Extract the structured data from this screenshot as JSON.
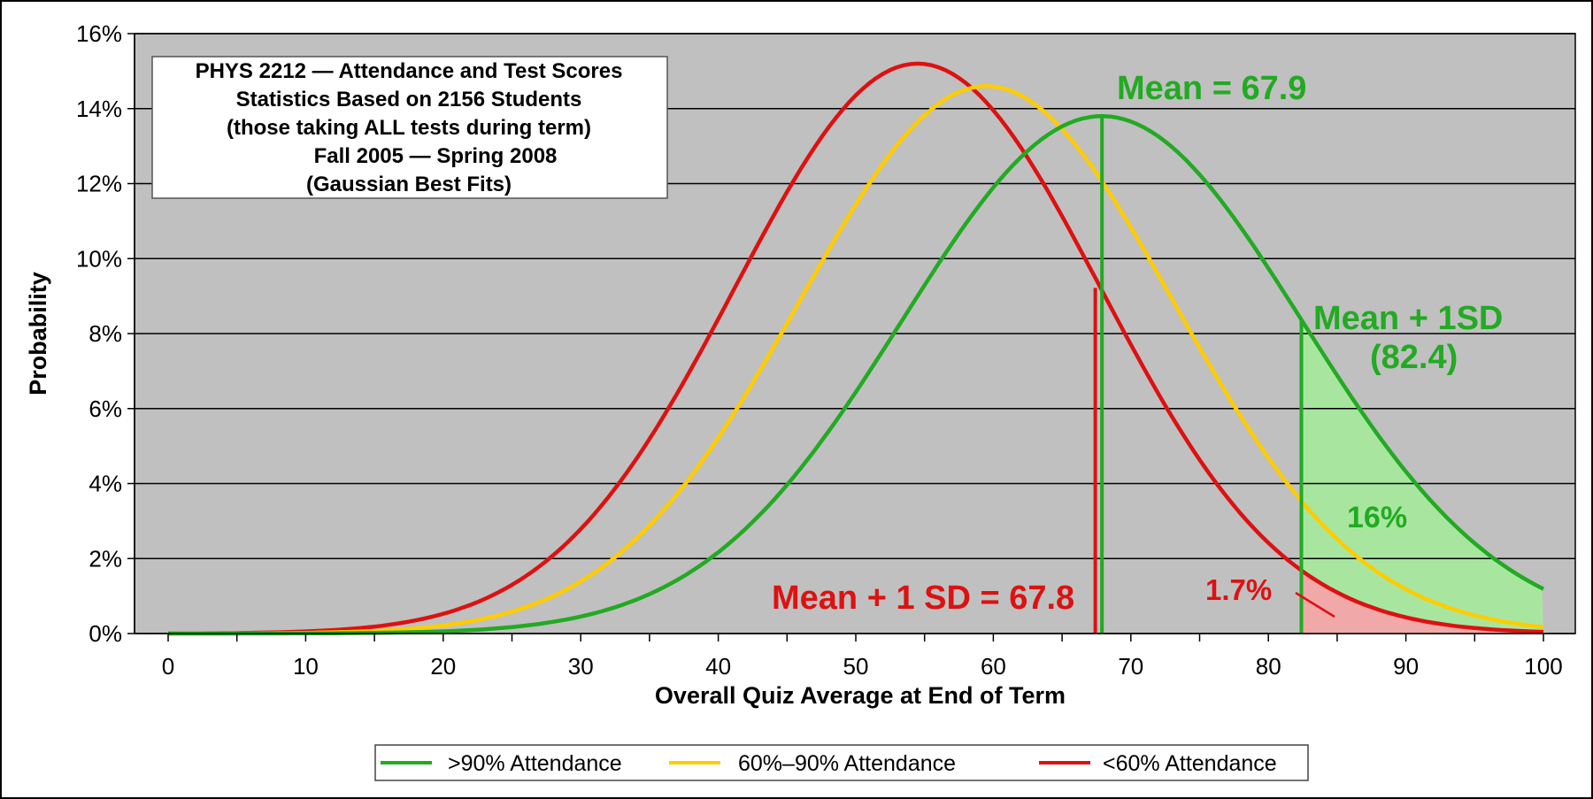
{
  "chart_data": {
    "type": "line",
    "title": "",
    "xlabel": "Overall Quiz Average at End of Term",
    "ylabel": "Probability",
    "xlim": [
      0,
      100
    ],
    "ylim": [
      0,
      16
    ],
    "x_ticks": [
      "0",
      "10",
      "20",
      "30",
      "40",
      "50",
      "60",
      "70",
      "80",
      "90",
      "100"
    ],
    "y_ticks": [
      "0%",
      "2%",
      "4%",
      "6%",
      "8%",
      "10%",
      "12%",
      "14%",
      "16%"
    ],
    "grid": true,
    "legend_position": "bottom",
    "info_box": [
      "PHYS 2212 — Attendance and Test Scores",
      "Statistics Based on  2156  Students",
      "(those taking ALL tests during term)",
      "Fall 2005 — Spring 2008",
      "(Gaussian Best Fits)"
    ],
    "series": [
      {
        "name": ">90% Attendance",
        "color": "#22aa22",
        "mean": 67.9,
        "sd": 14.5,
        "peak": 13.8,
        "x_end": 100
      },
      {
        "name": "60%–90% Attendance",
        "color": "#ffcc00",
        "mean": 59.5,
        "sd": 13.6,
        "peak": 14.6,
        "x_end": 100
      },
      {
        "name": "<60% Attendance",
        "color": "#dd1111",
        "mean": 54.5,
        "sd": 13.3,
        "peak": 15.2,
        "x_end": 100
      }
    ],
    "annotations": {
      "mean_green": {
        "text": "Mean = 67.9",
        "x": 67.9,
        "color": "#22aa22"
      },
      "sd_green_line1": {
        "text": "Mean + 1SD",
        "color": "#22aa22"
      },
      "sd_green_line2": {
        "text": "(82.4)",
        "x": 82.4,
        "color": "#22aa22"
      },
      "sd_red": {
        "text": "Mean + 1 SD = 67.8",
        "x": 67.8,
        "color": "#dd1111"
      },
      "pct_green": {
        "text": "16%",
        "color": "#22aa22"
      },
      "pct_red": {
        "text": "1.7%",
        "color": "#dd1111"
      }
    },
    "shading": {
      "from_x": 82.4,
      "to_x": 100,
      "green_fill": "#a8e6a0",
      "red_fill": "#f0a8a8"
    },
    "plot_background": "#c0c0c0"
  }
}
